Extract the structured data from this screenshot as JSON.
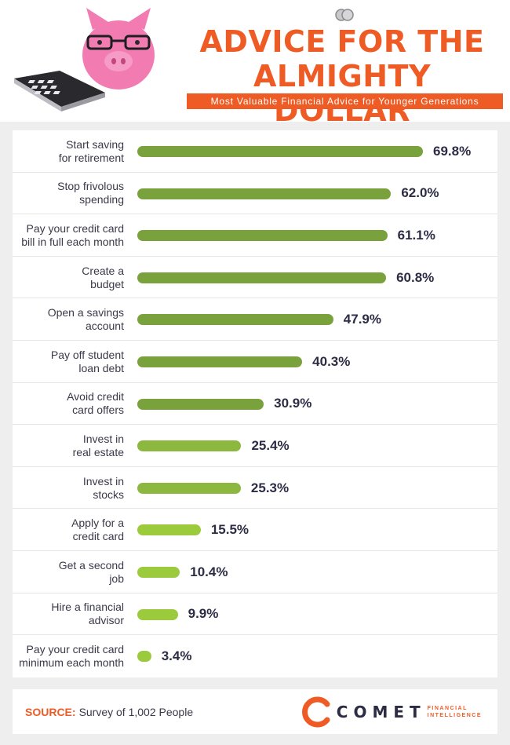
{
  "header": {
    "title_line1": "ADVICE FOR THE",
    "title_line2": "ALMIGHTY DOLLAR",
    "subtitle": "Most Valuable Financial Advice for Younger Generations"
  },
  "colors": {
    "accent": "#ef5b24",
    "bar_dark": "#79a23c",
    "bar_mid": "#8db840",
    "bar_light": "#9bcb3c"
  },
  "chart_data": {
    "type": "bar",
    "orientation": "horizontal",
    "categories": [
      [
        "Start saving",
        "for retirement"
      ],
      [
        "Stop frivolous",
        "spending"
      ],
      [
        "Pay your credit card",
        "bill in full each month"
      ],
      [
        "Create a",
        "budget"
      ],
      [
        "Open a savings",
        "account"
      ],
      [
        "Pay off student",
        "loan debt"
      ],
      [
        "Avoid credit",
        "card offers"
      ],
      [
        "Invest in",
        "real estate"
      ],
      [
        "Invest in",
        "stocks"
      ],
      [
        "Apply for a",
        "credit card"
      ],
      [
        "Get a second",
        "job"
      ],
      [
        "Hire a financial",
        "advisor"
      ],
      [
        "Pay your credit card",
        "minimum each month"
      ]
    ],
    "values": [
      69.8,
      62.0,
      61.1,
      60.8,
      47.9,
      40.3,
      30.9,
      25.4,
      25.3,
      15.5,
      10.4,
      9.9,
      3.4
    ],
    "value_labels": [
      "69.8%",
      "62.0%",
      "61.1%",
      "60.8%",
      "47.9%",
      "40.3%",
      "30.9%",
      "25.4%",
      "25.3%",
      "15.5%",
      "10.4%",
      "9.9%",
      "3.4%"
    ],
    "xlim": [
      0,
      69.8
    ],
    "grid": false,
    "legend": "none"
  },
  "footer": {
    "source_key": "SOURCE:",
    "source_text": "Survey of 1,002 People",
    "brand_name": "COMET",
    "brand_sub_line1": "FINANCIAL",
    "brand_sub_line2": "INTELLIGENCE"
  }
}
